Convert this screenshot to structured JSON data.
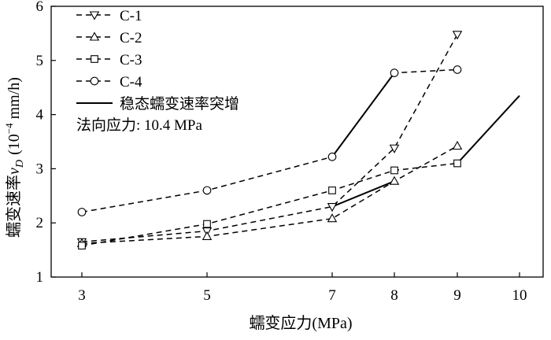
{
  "chart_data": {
    "type": "line",
    "title": "",
    "xlabel": "蠕变应力(MPa)",
    "ylabel_main": "蠕变速率",
    "ylabel_symbol": "v",
    "ylabel_subscript": "D",
    "ylabel_unit_open": "(10",
    "ylabel_unit_exp": "−4",
    "ylabel_unit_close": " mm/h)",
    "x_ticks": [
      3,
      5,
      7,
      8,
      9,
      10
    ],
    "y_ticks": [
      1,
      2,
      3,
      4,
      5,
      6
    ],
    "ylim": [
      1,
      6
    ],
    "grid": false,
    "legend_placement": "top-left",
    "series": [
      {
        "name": "C-1",
        "marker": "triangle-down",
        "style": "dashed",
        "x": [
          3,
          5,
          7,
          8,
          9
        ],
        "y": [
          1.65,
          1.85,
          2.3,
          3.38,
          5.48
        ]
      },
      {
        "name": "C-2",
        "marker": "triangle-up",
        "style": "dashed",
        "x": [
          3,
          5,
          7,
          8,
          9
        ],
        "y": [
          1.62,
          1.75,
          2.08,
          2.77,
          3.42
        ]
      },
      {
        "name": "C-3",
        "marker": "square",
        "style": "dashed",
        "x": [
          3,
          5,
          7,
          8,
          9
        ],
        "y": [
          1.58,
          1.98,
          2.6,
          2.97,
          3.1
        ]
      },
      {
        "name": "C-4",
        "marker": "circle",
        "style": "dashed",
        "x": [
          3,
          5,
          7,
          8,
          9
        ],
        "y": [
          2.2,
          2.6,
          3.22,
          4.77,
          4.83
        ]
      }
    ],
    "jump_segments_label": "稳态蠕变速率突增",
    "jump_segments": [
      {
        "x": [
          7,
          8
        ],
        "y": [
          3.22,
          4.77
        ]
      },
      {
        "x": [
          7,
          8
        ],
        "y": [
          2.3,
          2.77
        ]
      },
      {
        "x": [
          9,
          10
        ],
        "y": [
          3.1,
          4.35
        ]
      }
    ],
    "note": "法向应力: 10.4 MPa"
  }
}
